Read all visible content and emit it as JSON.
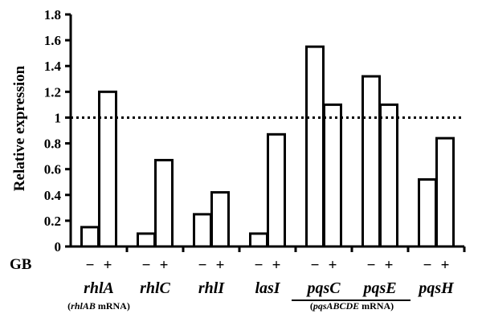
{
  "chart_data": {
    "type": "bar",
    "title": "",
    "ylabel": "Relative expression",
    "xlabel": "",
    "ylim": [
      0,
      1.8
    ],
    "yticks": [
      "0",
      "0.2",
      "0.4",
      "0.6",
      "0.8",
      "1",
      "1.2",
      "1.4",
      "1.6",
      "1.8"
    ],
    "reference_line": 1,
    "condition_label": "GB",
    "conditions": [
      "−",
      "+"
    ],
    "categories": [
      "rhlA",
      "rhlC",
      "rhlI",
      "lasI",
      "pqsC",
      "pqsE",
      "pqsH"
    ],
    "series": [
      {
        "values": [
          0.15,
          0.1,
          0.25,
          0.1,
          1.55,
          1.32,
          0.52
        ]
      },
      {
        "values": [
          1.2,
          0.67,
          0.42,
          0.87,
          1.1,
          1.1,
          0.84
        ]
      }
    ],
    "annotations": [
      {
        "italic": "rhlAB",
        "text": " mRNA"
      },
      {
        "italic": "pqsABCDE",
        "text": " mRNA"
      }
    ]
  }
}
